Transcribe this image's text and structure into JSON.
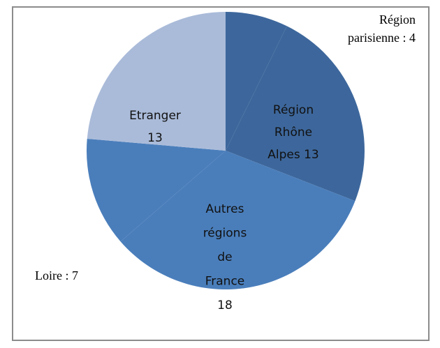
{
  "chart_data": {
    "type": "pie",
    "values": [
      4,
      13,
      18,
      7,
      13
    ],
    "value_labels": [
      "Région parisienne : 4",
      "Région Rhône Alpes 13",
      "Autres régions de France 18",
      "Loire : 7",
      "Etranger 13"
    ],
    "colors": [
      "#3d679c",
      "#3d679c",
      "#4a7ebb",
      "#4a7ebb",
      "#aabbd9"
    ]
  }
}
